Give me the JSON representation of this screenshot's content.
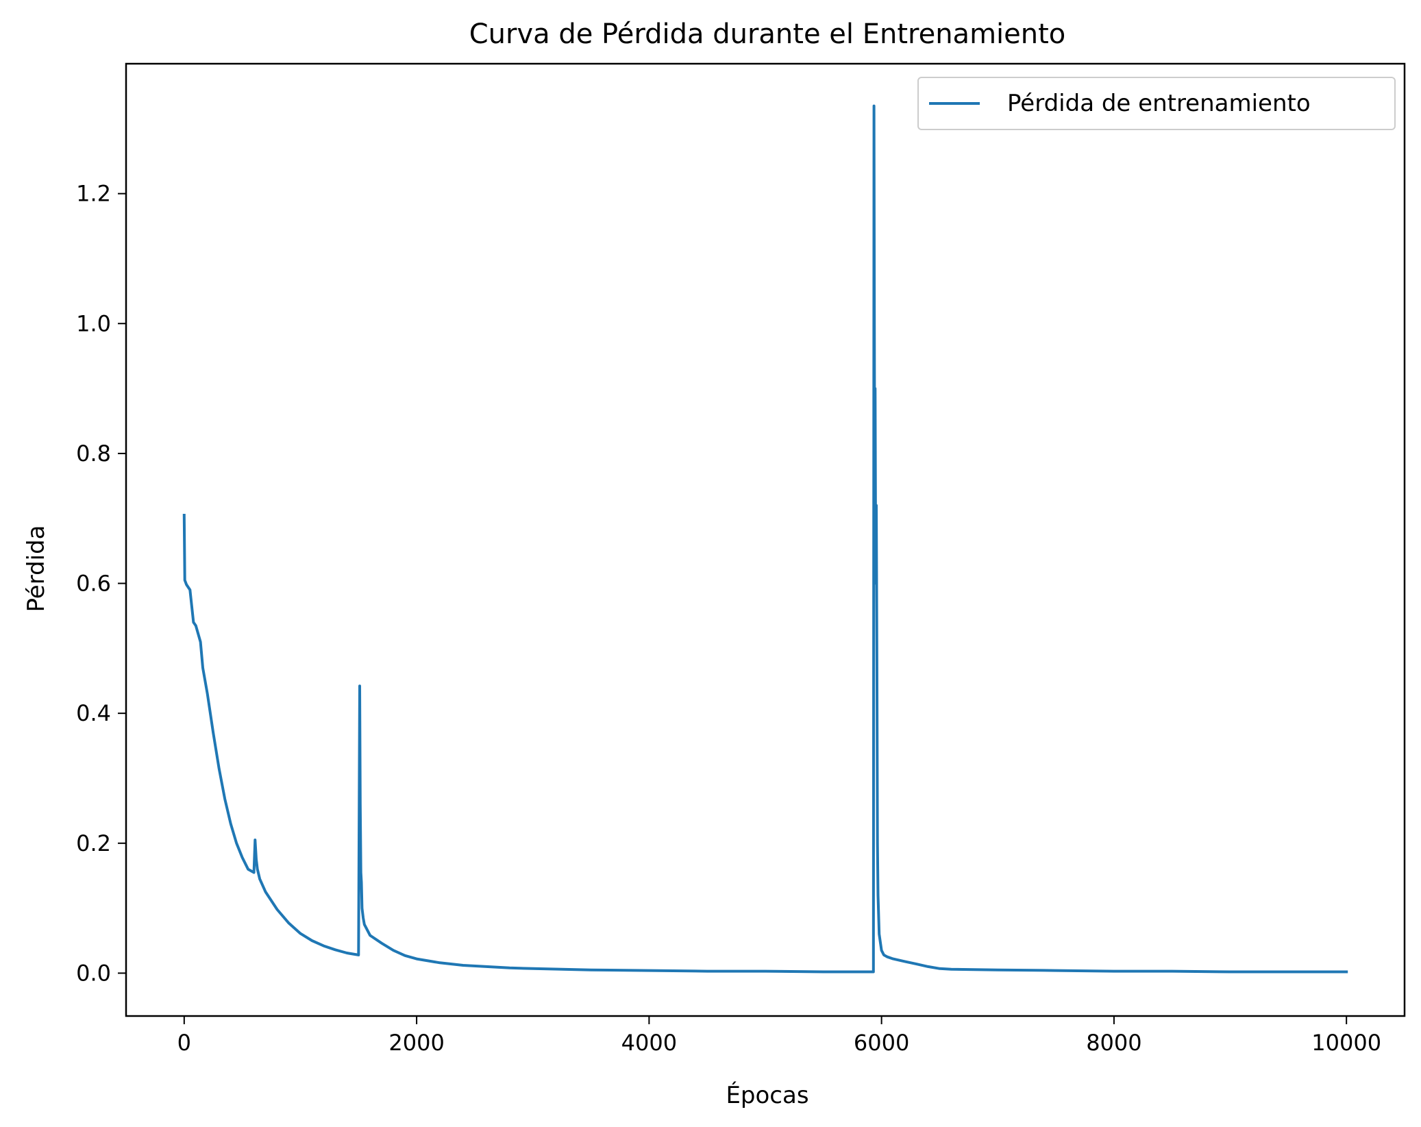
{
  "chart_data": {
    "type": "line",
    "title": "Curva de Pérdida durante el Entrenamiento",
    "xlabel": "Épocas",
    "ylabel": "Pérdida",
    "xlim": [
      -500,
      10500
    ],
    "ylim": [
      -0.066,
      1.4
    ],
    "x_ticks": [
      0,
      2000,
      4000,
      6000,
      8000,
      10000
    ],
    "x_tick_labels": [
      "0",
      "2000",
      "4000",
      "6000",
      "8000",
      "10000"
    ],
    "y_ticks": [
      0.0,
      0.2,
      0.4,
      0.6,
      0.8,
      1.0,
      1.2
    ],
    "y_tick_labels": [
      "0.0",
      "0.2",
      "0.4",
      "0.6",
      "0.8",
      "1.0",
      "1.2"
    ],
    "grid": false,
    "legend_position": "top-right",
    "series": [
      {
        "name": "Pérdida de entrenamiento",
        "color": "#1f77b4",
        "x": [
          0,
          5,
          20,
          50,
          80,
          100,
          140,
          160,
          200,
          250,
          300,
          350,
          400,
          450,
          500,
          550,
          600,
          610,
          620,
          630,
          650,
          700,
          800,
          900,
          1000,
          1100,
          1200,
          1300,
          1400,
          1500,
          1510,
          1515,
          1520,
          1525,
          1530,
          1540,
          1550,
          1600,
          1700,
          1800,
          1900,
          2000,
          2200,
          2400,
          2600,
          2800,
          3000,
          3500,
          4000,
          4500,
          5000,
          5500,
          5900,
          5930,
          5935,
          5940,
          5945,
          5950,
          5955,
          5960,
          5965,
          5970,
          5980,
          6000,
          6020,
          6050,
          6100,
          6200,
          6300,
          6400,
          6500,
          6600,
          7000,
          7500,
          8000,
          8500,
          9000,
          9500,
          10000
        ],
        "y": [
          0.705,
          0.605,
          0.598,
          0.59,
          0.54,
          0.535,
          0.51,
          0.47,
          0.43,
          0.37,
          0.315,
          0.268,
          0.23,
          0.2,
          0.178,
          0.16,
          0.155,
          0.205,
          0.175,
          0.16,
          0.145,
          0.125,
          0.098,
          0.077,
          0.061,
          0.05,
          0.042,
          0.036,
          0.031,
          0.028,
          0.442,
          0.26,
          0.155,
          0.14,
          0.1,
          0.085,
          0.075,
          0.058,
          0.046,
          0.035,
          0.027,
          0.022,
          0.016,
          0.012,
          0.01,
          0.008,
          0.007,
          0.005,
          0.004,
          0.003,
          0.003,
          0.002,
          0.002,
          0.002,
          1.335,
          0.82,
          0.9,
          0.6,
          0.72,
          0.48,
          0.2,
          0.12,
          0.06,
          0.035,
          0.028,
          0.025,
          0.022,
          0.018,
          0.014,
          0.01,
          0.007,
          0.006,
          0.005,
          0.004,
          0.003,
          0.003,
          0.002,
          0.002,
          0.002
        ]
      }
    ]
  }
}
